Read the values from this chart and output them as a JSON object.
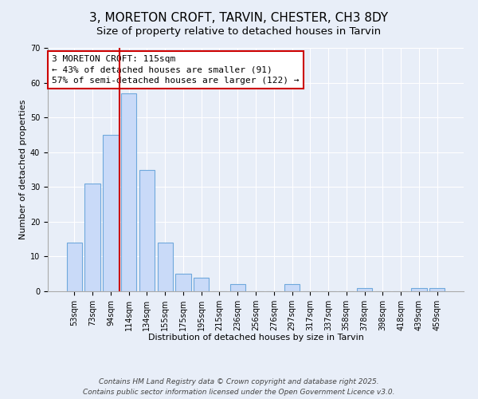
{
  "title": "3, MORETON CROFT, TARVIN, CHESTER, CH3 8DY",
  "subtitle": "Size of property relative to detached houses in Tarvin",
  "xlabel": "Distribution of detached houses by size in Tarvin",
  "ylabel": "Number of detached properties",
  "categories": [
    "53sqm",
    "73sqm",
    "94sqm",
    "114sqm",
    "134sqm",
    "155sqm",
    "175sqm",
    "195sqm",
    "215sqm",
    "236sqm",
    "256sqm",
    "276sqm",
    "297sqm",
    "317sqm",
    "337sqm",
    "358sqm",
    "378sqm",
    "398sqm",
    "418sqm",
    "439sqm",
    "459sqm"
  ],
  "values": [
    14,
    31,
    45,
    57,
    35,
    14,
    5,
    4,
    0,
    2,
    0,
    0,
    2,
    0,
    0,
    0,
    1,
    0,
    0,
    1,
    1
  ],
  "bar_color": "#c9daf8",
  "bar_edge_color": "#6fa8dc",
  "vline_index": 3,
  "vline_color": "#cc0000",
  "annotation_title": "3 MORETON CROFT: 115sqm",
  "annotation_line1": "← 43% of detached houses are smaller (91)",
  "annotation_line2": "57% of semi-detached houses are larger (122) →",
  "annotation_box_color": "#ffffff",
  "annotation_box_edge": "#cc0000",
  "ylim": [
    0,
    70
  ],
  "yticks": [
    0,
    10,
    20,
    30,
    40,
    50,
    60,
    70
  ],
  "background_color": "#e8eef8",
  "footer1": "Contains HM Land Registry data © Crown copyright and database right 2025.",
  "footer2": "Contains public sector information licensed under the Open Government Licence v3.0.",
  "title_fontsize": 11,
  "subtitle_fontsize": 9.5,
  "axis_label_fontsize": 8,
  "tick_fontsize": 7,
  "annotation_fontsize": 8,
  "footer_fontsize": 6.5
}
